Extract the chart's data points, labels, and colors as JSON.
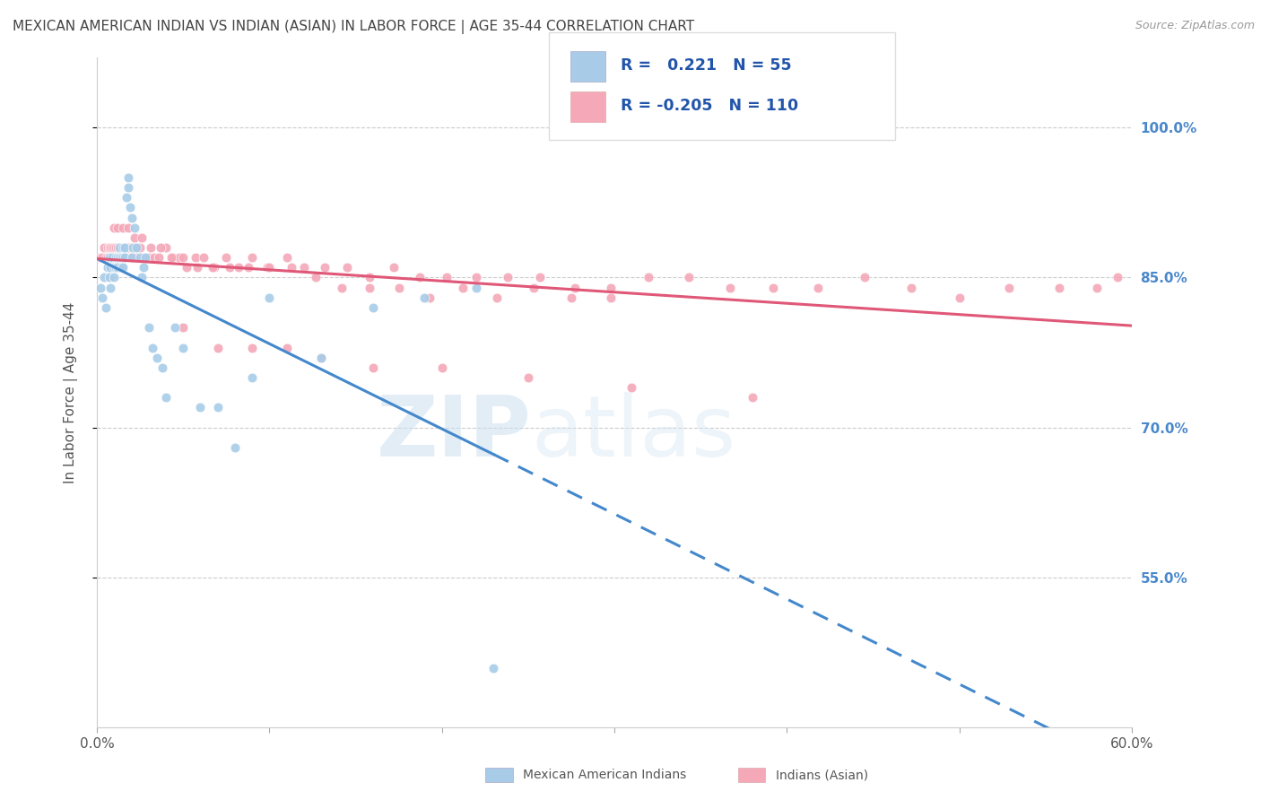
{
  "title": "MEXICAN AMERICAN INDIAN VS INDIAN (ASIAN) IN LABOR FORCE | AGE 35-44 CORRELATION CHART",
  "source": "Source: ZipAtlas.com",
  "ylabel": "In Labor Force | Age 35-44",
  "x_min": 0.0,
  "x_max": 0.6,
  "y_min": 0.4,
  "y_max": 1.07,
  "y_ticks": [
    0.55,
    0.7,
    0.85,
    1.0
  ],
  "y_tick_labels": [
    "55.0%",
    "70.0%",
    "85.0%",
    "100.0%"
  ],
  "x_ticks": [
    0.0,
    0.1,
    0.2,
    0.3,
    0.4,
    0.5,
    0.6
  ],
  "x_tick_labels": [
    "0.0%",
    "",
    "",
    "",
    "",
    "",
    "60.0%"
  ],
  "legend_r_blue": "0.221",
  "legend_n_blue": "55",
  "legend_r_pink": "-0.205",
  "legend_n_pink": "110",
  "blue_color": "#a8cce8",
  "pink_color": "#f4a8b8",
  "trend_blue": "#4488cc",
  "trend_pink": "#e05878",
  "watermark_zip": "ZIP",
  "watermark_atlas": "atlas",
  "blue_scatter_x": [
    0.002,
    0.003,
    0.004,
    0.005,
    0.006,
    0.007,
    0.007,
    0.008,
    0.008,
    0.009,
    0.01,
    0.01,
    0.011,
    0.011,
    0.012,
    0.012,
    0.013,
    0.013,
    0.014,
    0.014,
    0.015,
    0.015,
    0.015,
    0.016,
    0.016,
    0.017,
    0.018,
    0.018,
    0.019,
    0.02,
    0.02,
    0.021,
    0.022,
    0.023,
    0.025,
    0.026,
    0.027,
    0.028,
    0.03,
    0.032,
    0.035,
    0.038,
    0.04,
    0.045,
    0.05,
    0.06,
    0.07,
    0.08,
    0.09,
    0.1,
    0.13,
    0.16,
    0.19,
    0.22,
    0.23
  ],
  "blue_scatter_y": [
    0.84,
    0.83,
    0.85,
    0.82,
    0.86,
    0.87,
    0.85,
    0.86,
    0.84,
    0.87,
    0.86,
    0.85,
    0.87,
    0.86,
    0.87,
    0.86,
    0.88,
    0.87,
    0.86,
    0.87,
    0.88,
    0.87,
    0.86,
    0.88,
    0.87,
    0.93,
    0.95,
    0.94,
    0.92,
    0.91,
    0.87,
    0.88,
    0.9,
    0.88,
    0.87,
    0.85,
    0.86,
    0.87,
    0.8,
    0.78,
    0.77,
    0.76,
    0.73,
    0.8,
    0.78,
    0.72,
    0.72,
    0.68,
    0.75,
    0.83,
    0.77,
    0.82,
    0.83,
    0.84,
    0.46
  ],
  "pink_scatter_x": [
    0.002,
    0.003,
    0.004,
    0.005,
    0.006,
    0.006,
    0.007,
    0.007,
    0.008,
    0.008,
    0.009,
    0.009,
    0.01,
    0.01,
    0.011,
    0.011,
    0.012,
    0.012,
    0.013,
    0.013,
    0.014,
    0.014,
    0.015,
    0.015,
    0.016,
    0.016,
    0.017,
    0.018,
    0.019,
    0.02,
    0.021,
    0.022,
    0.023,
    0.025,
    0.027,
    0.03,
    0.033,
    0.036,
    0.04,
    0.044,
    0.048,
    0.052,
    0.057,
    0.062,
    0.068,
    0.075,
    0.082,
    0.09,
    0.099,
    0.11,
    0.12,
    0.132,
    0.145,
    0.158,
    0.172,
    0.187,
    0.203,
    0.22,
    0.238,
    0.257,
    0.277,
    0.298,
    0.32,
    0.343,
    0.367,
    0.392,
    0.418,
    0.445,
    0.472,
    0.5,
    0.529,
    0.558,
    0.58,
    0.592,
    0.01,
    0.012,
    0.015,
    0.018,
    0.022,
    0.026,
    0.031,
    0.037,
    0.043,
    0.05,
    0.058,
    0.067,
    0.077,
    0.088,
    0.1,
    0.113,
    0.127,
    0.142,
    0.158,
    0.175,
    0.193,
    0.212,
    0.232,
    0.253,
    0.275,
    0.298,
    0.05,
    0.07,
    0.09,
    0.11,
    0.13,
    0.16,
    0.2,
    0.25,
    0.31,
    0.38
  ],
  "pink_scatter_y": [
    0.87,
    0.87,
    0.88,
    0.87,
    0.87,
    0.88,
    0.87,
    0.88,
    0.87,
    0.88,
    0.87,
    0.88,
    0.88,
    0.87,
    0.88,
    0.87,
    0.88,
    0.87,
    0.88,
    0.87,
    0.88,
    0.87,
    0.88,
    0.87,
    0.88,
    0.87,
    0.88,
    0.88,
    0.87,
    0.88,
    0.87,
    0.88,
    0.87,
    0.88,
    0.87,
    0.87,
    0.87,
    0.87,
    0.88,
    0.87,
    0.87,
    0.86,
    0.87,
    0.87,
    0.86,
    0.87,
    0.86,
    0.87,
    0.86,
    0.87,
    0.86,
    0.86,
    0.86,
    0.85,
    0.86,
    0.85,
    0.85,
    0.85,
    0.85,
    0.85,
    0.84,
    0.84,
    0.85,
    0.85,
    0.84,
    0.84,
    0.84,
    0.85,
    0.84,
    0.83,
    0.84,
    0.84,
    0.84,
    0.85,
    0.9,
    0.9,
    0.9,
    0.9,
    0.89,
    0.89,
    0.88,
    0.88,
    0.87,
    0.87,
    0.86,
    0.86,
    0.86,
    0.86,
    0.86,
    0.86,
    0.85,
    0.84,
    0.84,
    0.84,
    0.83,
    0.84,
    0.83,
    0.84,
    0.83,
    0.83,
    0.8,
    0.78,
    0.78,
    0.78,
    0.77,
    0.76,
    0.76,
    0.75,
    0.74,
    0.73
  ]
}
